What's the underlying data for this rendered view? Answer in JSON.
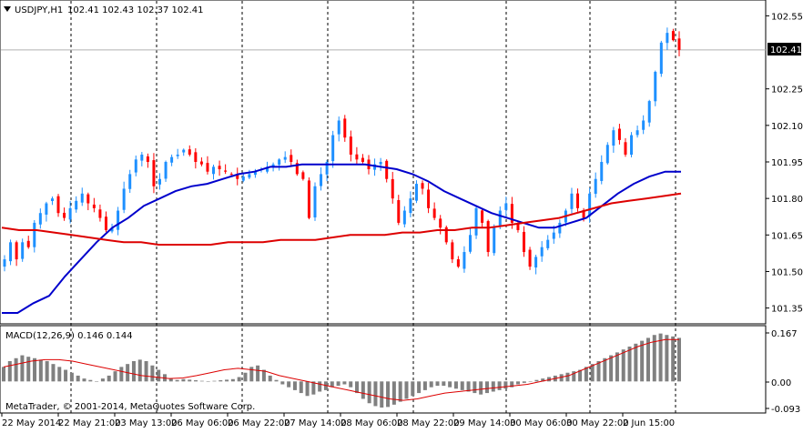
{
  "header": {
    "symbol": "USDJPY,H1",
    "ohlc": "102.41 102.43 102.37 102.41",
    "menu_icon": "triangle-down-icon"
  },
  "macd": {
    "label": "MACD(12,26,9) 0.146 0.144",
    "axis": {
      "ylim": [
        -0.093,
        0.167
      ],
      "ticks": [
        "0.167",
        "0.00",
        "-0.093"
      ]
    }
  },
  "copyright": "MetaTrader, © 2001-2014, MetaQuotes Software Corp.",
  "price_axis": {
    "current": "102.41",
    "ticks": [
      "102.55",
      "102.41",
      "102.25",
      "102.10",
      "101.95",
      "101.80",
      "101.65",
      "101.50",
      "101.35"
    ]
  },
  "time_axis": {
    "labels": [
      "22 May 2014",
      "22 May 21:00",
      "23 May 13:00",
      "26 May 06:00",
      "26 May 22:00",
      "27 May 14:00",
      "28 May 06:00",
      "28 May 22:00",
      "29 May 14:00",
      "30 May 06:00",
      "30 May 22:00",
      "2 Jun 15:00"
    ]
  },
  "colors": {
    "bull": "#1e90ff",
    "bear": "#ff0000",
    "ma_fast": "#0000cc",
    "ma_slow": "#dd0000",
    "histogram": "#808080",
    "signal": "#dd0000",
    "price_line": "#b0b0b0"
  },
  "chart_data": {
    "type": "candlestick",
    "symbol": "USDJPY",
    "timeframe": "H1",
    "ylim": [
      101.3,
      102.6
    ],
    "x_labels": [
      "22 May 2014",
      "22 May 21:00",
      "23 May 13:00",
      "26 May 06:00",
      "26 May 22:00",
      "27 May 14:00",
      "28 May 06:00",
      "28 May 22:00",
      "29 May 14:00",
      "30 May 06:00",
      "30 May 22:00",
      "2 Jun 15:00"
    ],
    "close_path": [
      101.55,
      101.62,
      101.55,
      101.62,
      101.6,
      101.7,
      101.74,
      101.78,
      101.8,
      101.74,
      101.72,
      101.76,
      101.79,
      101.82,
      101.78,
      101.76,
      101.72,
      101.67,
      101.68,
      101.75,
      101.84,
      101.9,
      101.96,
      101.98,
      101.95,
      101.85,
      101.88,
      101.95,
      101.97,
      101.98,
      102.0,
      101.98,
      101.95,
      101.94,
      101.91,
      101.93,
      101.92,
      101.91,
      101.9,
      101.88,
      101.89,
      101.9,
      101.91,
      101.92,
      101.93,
      101.94,
      101.96,
      101.97,
      101.95,
      101.9,
      101.88,
      101.72,
      101.85,
      101.9,
      101.95,
      102.06,
      102.12,
      102.05,
      101.98,
      101.96,
      101.95,
      101.92,
      101.94,
      101.95,
      101.88,
      101.8,
      101.7,
      101.75,
      101.8,
      101.86,
      101.84,
      101.76,
      101.72,
      101.68,
      101.62,
      101.55,
      101.52,
      101.58,
      101.65,
      101.76,
      101.7,
      101.58,
      101.68,
      101.75,
      101.78,
      101.7,
      101.67,
      101.58,
      101.52,
      101.56,
      101.6,
      101.63,
      101.66,
      101.7,
      101.75,
      101.82,
      101.76,
      101.72,
      101.82,
      101.88,
      101.95,
      102.02,
      102.08,
      102.04,
      101.98,
      102.06,
      102.08,
      102.12,
      102.2,
      102.32,
      102.44,
      102.48,
      102.45,
      102.41
    ],
    "ma_fast": [
      [
        101.33,
        101.33
      ],
      [
        101.37,
        101.4
      ],
      [
        101.48,
        101.55
      ],
      [
        101.62,
        101.68
      ],
      [
        101.72,
        101.77
      ],
      [
        101.8,
        101.83
      ],
      [
        101.85,
        101.86
      ],
      [
        101.88,
        101.9
      ],
      [
        101.91,
        101.93
      ],
      [
        101.93,
        101.94
      ],
      [
        101.94,
        101.94
      ],
      [
        101.94,
        101.94
      ],
      [
        101.93,
        101.92
      ],
      [
        101.9,
        101.87
      ],
      [
        101.83,
        101.8
      ],
      [
        101.77,
        101.74
      ],
      [
        101.72,
        101.7
      ],
      [
        101.68,
        101.68
      ],
      [
        101.7,
        101.72
      ],
      [
        101.77,
        101.82
      ],
      [
        101.86,
        101.89
      ],
      [
        101.91,
        101.91
      ]
    ],
    "ma_slow": [
      [
        101.68,
        101.67
      ],
      [
        101.67,
        101.66
      ],
      [
        101.65,
        101.64
      ],
      [
        101.63,
        101.62
      ],
      [
        101.62,
        101.61
      ],
      [
        101.61,
        101.61
      ],
      [
        101.61,
        101.62
      ],
      [
        101.62,
        101.62
      ],
      [
        101.63,
        101.63
      ],
      [
        101.63,
        101.64
      ],
      [
        101.65,
        101.65
      ],
      [
        101.65,
        101.66
      ],
      [
        101.66,
        101.67
      ],
      [
        101.67,
        101.68
      ],
      [
        101.68,
        101.69
      ],
      [
        101.7,
        101.71
      ],
      [
        101.72,
        101.74
      ],
      [
        101.76,
        101.78
      ],
      [
        101.79,
        101.8
      ],
      [
        101.81,
        101.82
      ]
    ],
    "macd_histogram": [
      0.05,
      0.07,
      0.08,
      0.09,
      0.085,
      0.08,
      0.075,
      0.07,
      0.06,
      0.05,
      0.04,
      0.03,
      0.02,
      0.01,
      0.005,
      0.0,
      0.01,
      0.02,
      0.035,
      0.05,
      0.06,
      0.07,
      0.075,
      0.07,
      0.055,
      0.04,
      0.025,
      0.01,
      0.005,
      0.008,
      0.006,
      0.004,
      0.002,
      0.0,
      0.002,
      0.004,
      0.006,
      0.008,
      0.015,
      0.03,
      0.05,
      0.055,
      0.04,
      0.02,
      0.005,
      -0.01,
      -0.02,
      -0.03,
      -0.04,
      -0.05,
      -0.045,
      -0.035,
      -0.03,
      -0.02,
      -0.015,
      -0.01,
      -0.02,
      -0.04,
      -0.06,
      -0.075,
      -0.085,
      -0.09,
      -0.088,
      -0.08,
      -0.07,
      -0.06,
      -0.05,
      -0.04,
      -0.03,
      -0.02,
      -0.015,
      -0.015,
      -0.02,
      -0.025,
      -0.03,
      -0.035,
      -0.04,
      -0.045,
      -0.04,
      -0.035,
      -0.03,
      -0.025,
      -0.02,
      -0.01,
      -0.005,
      0.0,
      0.005,
      0.01,
      0.015,
      0.02,
      0.025,
      0.03,
      0.035,
      0.04,
      0.05,
      0.06,
      0.07,
      0.08,
      0.09,
      0.1,
      0.11,
      0.12,
      0.13,
      0.14,
      0.15,
      0.16,
      0.165,
      0.16,
      0.155,
      0.15
    ],
    "macd_signal": [
      [
        0.05,
        0.06
      ],
      [
        0.07,
        0.075
      ],
      [
        0.075,
        0.07
      ],
      [
        0.06,
        0.05
      ],
      [
        0.04,
        0.03
      ],
      [
        0.02,
        0.015
      ],
      [
        0.01,
        0.012
      ],
      [
        0.02,
        0.03
      ],
      [
        0.04,
        0.045
      ],
      [
        0.04,
        0.035
      ],
      [
        0.02,
        0.01
      ],
      [
        0.0,
        -0.01
      ],
      [
        -0.02,
        -0.03
      ],
      [
        -0.04,
        -0.05
      ],
      [
        -0.06,
        -0.065
      ],
      [
        -0.06,
        -0.05
      ],
      [
        -0.04,
        -0.035
      ],
      [
        -0.03,
        -0.025
      ],
      [
        -0.02,
        -0.015
      ],
      [
        -0.01,
        0.0
      ],
      [
        0.01,
        0.02
      ],
      [
        0.04,
        0.06
      ],
      [
        0.08,
        0.1
      ],
      [
        0.12,
        0.135
      ],
      [
        0.144,
        0.144
      ]
    ]
  }
}
